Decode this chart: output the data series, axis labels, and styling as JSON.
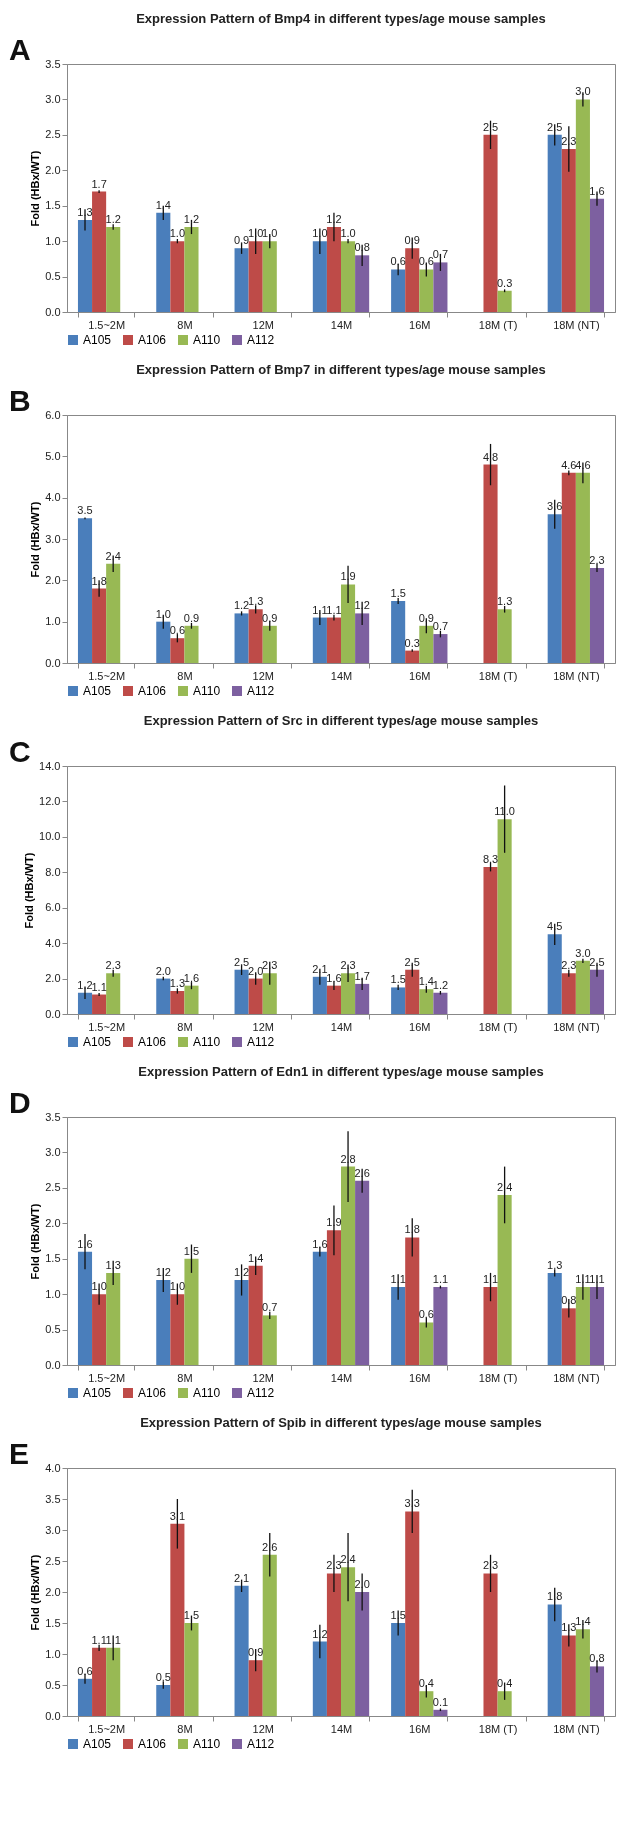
{
  "chart_data": [
    {
      "type": "bar",
      "title": "Expression Pattern of Bmp4  in different types/age mouse samples",
      "ylabel": "Fold (HBx/WT)",
      "annotations": [
        "A"
      ],
      "categories": [
        "1.5~2M",
        "8M",
        "12M",
        "14M",
        "16M",
        "18M (T)",
        "18M (NT)"
      ],
      "ylim": [
        0,
        3.5
      ],
      "yticks": [
        {
          "value": 0,
          "label": "0.0"
        },
        {
          "value": 0.5,
          "label": "0.5"
        },
        {
          "value": 1,
          "label": "1.0"
        },
        {
          "value": 1.5,
          "label": "1.5"
        },
        {
          "value": 2,
          "label": "2.0"
        },
        {
          "value": 2.5,
          "label": "2.5"
        },
        {
          "value": 3,
          "label": "3.0"
        },
        {
          "value": 3.5,
          "label": "3.5"
        }
      ],
      "legend": "bottom",
      "grid": false,
      "series": [
        {
          "name": "A105",
          "color": "#4a7ebb",
          "values": [
            1.3,
            1.4,
            0.9,
            1.0,
            0.6,
            null,
            2.5
          ],
          "errors": [
            0.15,
            0.1,
            0.08,
            0.18,
            0.08,
            null,
            0.15
          ],
          "value_labels": [
            "1.3",
            "1.4",
            "0.9",
            "1.0",
            "0.6",
            null,
            "2.5"
          ]
        },
        {
          "name": "A106",
          "color": "#be4b48",
          "values": [
            1.7,
            1.0,
            1.0,
            1.2,
            0.9,
            2.5,
            2.3
          ],
          "errors": [
            0.02,
            0.03,
            0.18,
            0.2,
            0.15,
            0.2,
            0.32
          ],
          "value_labels": [
            "1.7",
            "1.0",
            "1.0",
            "1.2",
            "0.9",
            "2.5",
            "2.3"
          ]
        },
        {
          "name": "A110",
          "color": "#98b954",
          "values": [
            1.2,
            1.2,
            1.0,
            1.0,
            0.6,
            0.3,
            3.0
          ],
          "errors": [
            0.04,
            0.1,
            0.1,
            0.03,
            0.1,
            0.02,
            0.1
          ],
          "value_labels": [
            "1.2",
            "1.2",
            "1.0",
            "1.0",
            "0.6",
            "0.3",
            "3.0"
          ]
        },
        {
          "name": "A112",
          "color": "#7d60a0",
          "values": [
            null,
            null,
            null,
            0.8,
            0.7,
            null,
            1.6
          ],
          "errors": [
            null,
            null,
            null,
            0.15,
            0.12,
            null,
            0.1
          ],
          "value_labels": [
            null,
            null,
            null,
            "0.8",
            "0.7",
            null,
            "1.6"
          ]
        }
      ]
    },
    {
      "type": "bar",
      "title": "Expression Pattern of Bmp7  in different types/age mouse samples",
      "ylabel": "Fold (HBx/WT)",
      "annotations": [
        "B"
      ],
      "categories": [
        "1.5~2M",
        "8M",
        "12M",
        "14M",
        "16M",
        "18M (T)",
        "18M (NT)"
      ],
      "ylim": [
        0,
        6
      ],
      "yticks": [
        {
          "value": 0,
          "label": "0.0"
        },
        {
          "value": 1,
          "label": "1.0"
        },
        {
          "value": 2,
          "label": "2.0"
        },
        {
          "value": 3,
          "label": "3.0"
        },
        {
          "value": 4,
          "label": "4.0"
        },
        {
          "value": 5,
          "label": "5.0"
        },
        {
          "value": 6,
          "label": "6.0"
        }
      ],
      "legend": "bottom",
      "grid": false,
      "series": [
        {
          "name": "A105",
          "color": "#4a7ebb",
          "values": [
            3.5,
            1.0,
            1.2,
            1.1,
            1.5,
            null,
            3.6
          ],
          "errors": [
            0.02,
            0.17,
            0.05,
            0.18,
            0.07,
            null,
            0.35
          ],
          "value_labels": [
            "3.5",
            "1.0",
            "1.2",
            "1.1",
            "1.5",
            null,
            "3.6"
          ]
        },
        {
          "name": "A106",
          "color": "#be4b48",
          "values": [
            1.8,
            0.6,
            1.3,
            1.1,
            0.3,
            4.8,
            4.6
          ],
          "errors": [
            0.2,
            0.1,
            0.1,
            0.07,
            0.03,
            0.5,
            0.06
          ],
          "value_labels": [
            "1.8",
            "0.6",
            "1.3",
            "1.1",
            "0.3",
            "4.8",
            "4.6"
          ]
        },
        {
          "name": "A110",
          "color": "#98b954",
          "values": [
            2.4,
            0.9,
            0.9,
            1.9,
            0.9,
            1.3,
            4.6
          ],
          "errors": [
            0.2,
            0.07,
            0.12,
            0.45,
            0.18,
            0.08,
            0.25
          ],
          "value_labels": [
            "2.4",
            "0.9",
            "0.9",
            "1.9",
            "0.9",
            "1.3",
            "4.6"
          ]
        },
        {
          "name": "A112",
          "color": "#7d60a0",
          "values": [
            null,
            null,
            null,
            1.2,
            0.7,
            null,
            2.3
          ],
          "errors": [
            null,
            null,
            null,
            0.28,
            0.08,
            null,
            0.1
          ],
          "value_labels": [
            null,
            null,
            null,
            "1.2",
            "0.7",
            null,
            "2.3"
          ]
        }
      ]
    },
    {
      "type": "bar",
      "title": "Expression Pattern of Src in different types/age mouse samples",
      "ylabel": "Fold (HBx/WT)",
      "annotations": [
        "C"
      ],
      "categories": [
        "1.5~2M",
        "8M",
        "12M",
        "14M",
        "16M",
        "18M (T)",
        "18M (NT)"
      ],
      "ylim": [
        0,
        14
      ],
      "yticks": [
        {
          "value": 0,
          "label": "0.0"
        },
        {
          "value": 2,
          "label": "2.0"
        },
        {
          "value": 4,
          "label": "4.0"
        },
        {
          "value": 6,
          "label": "6.0"
        },
        {
          "value": 8,
          "label": "8.0"
        },
        {
          "value": 10,
          "label": "10.0"
        },
        {
          "value": 12,
          "label": "12.0"
        },
        {
          "value": 14,
          "label": "14.0"
        }
      ],
      "legend": "bottom",
      "grid": false,
      "series": [
        {
          "name": "A105",
          "color": "#4a7ebb",
          "values": [
            1.2,
            2.0,
            2.5,
            2.1,
            1.5,
            null,
            4.5
          ],
          "errors": [
            0.35,
            0.1,
            0.3,
            0.45,
            0.15,
            null,
            0.6
          ],
          "value_labels": [
            "1.2",
            "2.0",
            "2.5",
            "2.1",
            "1.5",
            null,
            "4.5"
          ]
        },
        {
          "name": "A106",
          "color": "#be4b48",
          "values": [
            1.1,
            1.3,
            2.0,
            1.6,
            2.5,
            8.3,
            2.3
          ],
          "errors": [
            0.08,
            0.15,
            0.35,
            0.25,
            0.4,
            0.25,
            0.2
          ],
          "value_labels": [
            "1.1",
            "1.3",
            "2.0",
            "1.6",
            "2.5",
            "8.3",
            "2.3"
          ]
        },
        {
          "name": "A110",
          "color": "#98b954",
          "values": [
            2.3,
            1.6,
            2.3,
            2.3,
            1.4,
            11.0,
            3.0
          ],
          "errors": [
            0.2,
            0.2,
            0.65,
            0.5,
            0.2,
            1.9,
            0.12
          ],
          "value_labels": [
            "2.3",
            "1.6",
            "2.3",
            "2.3",
            "1.4",
            "11.0",
            "3.0"
          ]
        },
        {
          "name": "A112",
          "color": "#7d60a0",
          "values": [
            null,
            null,
            null,
            1.7,
            1.2,
            null,
            2.5
          ],
          "errors": [
            null,
            null,
            null,
            0.35,
            0.1,
            null,
            0.4
          ],
          "value_labels": [
            null,
            null,
            null,
            "1.7",
            "1.2",
            null,
            "2.5"
          ]
        }
      ]
    },
    {
      "type": "bar",
      "title": "Expression Pattern of Edn1  in different types/age mouse samples",
      "ylabel": "Fold (HBx/WT)",
      "annotations": [
        "D"
      ],
      "categories": [
        "1.5~2M",
        "8M",
        "12M",
        "14M",
        "16M",
        "18M (T)",
        "18M (NT)"
      ],
      "ylim": [
        0,
        3.5
      ],
      "yticks": [
        {
          "value": 0,
          "label": "0.0"
        },
        {
          "value": 0.5,
          "label": "0.5"
        },
        {
          "value": 1,
          "label": "1.0"
        },
        {
          "value": 1.5,
          "label": "1.5"
        },
        {
          "value": 2,
          "label": "2.0"
        },
        {
          "value": 2.5,
          "label": "2.5"
        },
        {
          "value": 3,
          "label": "3.0"
        },
        {
          "value": 3.5,
          "label": "3.5"
        }
      ],
      "legend": "bottom",
      "grid": false,
      "series": [
        {
          "name": "A105",
          "color": "#4a7ebb",
          "values": [
            1.6,
            1.2,
            1.2,
            1.6,
            1.1,
            null,
            1.3
          ],
          "errors": [
            0.25,
            0.17,
            0.22,
            0.07,
            0.18,
            null,
            0.05
          ],
          "value_labels": [
            "1.6",
            "1.2",
            "1.2",
            "1.6",
            "1.1",
            null,
            "1.3"
          ]
        },
        {
          "name": "A106",
          "color": "#be4b48",
          "values": [
            1.0,
            1.0,
            1.4,
            1.9,
            1.8,
            1.1,
            0.8
          ],
          "errors": [
            0.15,
            0.15,
            0.13,
            0.35,
            0.27,
            0.2,
            0.13
          ],
          "value_labels": [
            "1.0",
            "1.0",
            "1.4",
            "1.9",
            "1.8",
            "1.1",
            "0.8"
          ]
        },
        {
          "name": "A110",
          "color": "#98b954",
          "values": [
            1.3,
            1.5,
            0.7,
            2.8,
            0.6,
            2.4,
            1.1
          ],
          "errors": [
            0.17,
            0.2,
            0.05,
            0.5,
            0.07,
            0.4,
            0.18
          ],
          "value_labels": [
            "1.3",
            "1.5",
            "0.7",
            "2.8",
            "0.6",
            "2.4",
            "1.1"
          ]
        },
        {
          "name": "A112",
          "color": "#7d60a0",
          "values": [
            null,
            null,
            null,
            2.6,
            1.1,
            null,
            1.1
          ],
          "errors": [
            null,
            null,
            null,
            0.17,
            0.02,
            null,
            0.17
          ],
          "value_labels": [
            null,
            null,
            null,
            "2.6",
            "1.1",
            null,
            "1.1"
          ]
        }
      ]
    },
    {
      "type": "bar",
      "title": "Expression Pattern of Spib in different types/age mouse samples",
      "ylabel": "Fold (HBx/WT)",
      "annotations": [
        "E"
      ],
      "categories": [
        "1.5~2M",
        "8M",
        "12M",
        "14M",
        "16M",
        "18M (T)",
        "18M (NT)"
      ],
      "ylim": [
        0,
        4
      ],
      "yticks": [
        {
          "value": 0,
          "label": "0.0"
        },
        {
          "value": 0.5,
          "label": "0.5"
        },
        {
          "value": 1,
          "label": "1.0"
        },
        {
          "value": 1.5,
          "label": "1.5"
        },
        {
          "value": 2,
          "label": "2.0"
        },
        {
          "value": 2.5,
          "label": "2.5"
        },
        {
          "value": 3,
          "label": "3.0"
        },
        {
          "value": 3.5,
          "label": "3.5"
        },
        {
          "value": 4,
          "label": "4.0"
        }
      ],
      "legend": "bottom",
      "grid": false,
      "series": [
        {
          "name": "A105",
          "color": "#4a7ebb",
          "values": [
            0.6,
            0.5,
            2.1,
            1.2,
            1.5,
            null,
            1.8
          ],
          "errors": [
            0.08,
            0.06,
            0.1,
            0.27,
            0.2,
            null,
            0.27
          ],
          "value_labels": [
            "0.6",
            "0.5",
            "2.1",
            "1.2",
            "1.5",
            null,
            "1.8"
          ]
        },
        {
          "name": "A106",
          "color": "#be4b48",
          "values": [
            1.1,
            3.1,
            0.9,
            2.3,
            3.3,
            2.3,
            1.3
          ],
          "errors": [
            0.05,
            0.4,
            0.18,
            0.3,
            0.35,
            0.3,
            0.18
          ],
          "value_labels": [
            "1.1",
            "3.1",
            "0.9",
            "2.3",
            "3.3",
            "2.3",
            "1.3"
          ]
        },
        {
          "name": "A110",
          "color": "#98b954",
          "values": [
            1.1,
            1.5,
            2.6,
            2.4,
            0.4,
            0.4,
            1.4
          ],
          "errors": [
            0.2,
            0.12,
            0.35,
            0.55,
            0.1,
            0.14,
            0.15
          ],
          "value_labels": [
            "1.1",
            "1.5",
            "2.6",
            "2.4",
            "0.4",
            "0.4",
            "1.4"
          ]
        },
        {
          "name": "A112",
          "color": "#7d60a0",
          "values": [
            null,
            null,
            null,
            2.0,
            0.1,
            null,
            0.8
          ],
          "errors": [
            null,
            null,
            null,
            0.3,
            0.02,
            null,
            0.1
          ],
          "value_labels": [
            null,
            null,
            null,
            "2.0",
            "0.1",
            null,
            "0.8"
          ]
        }
      ]
    }
  ]
}
